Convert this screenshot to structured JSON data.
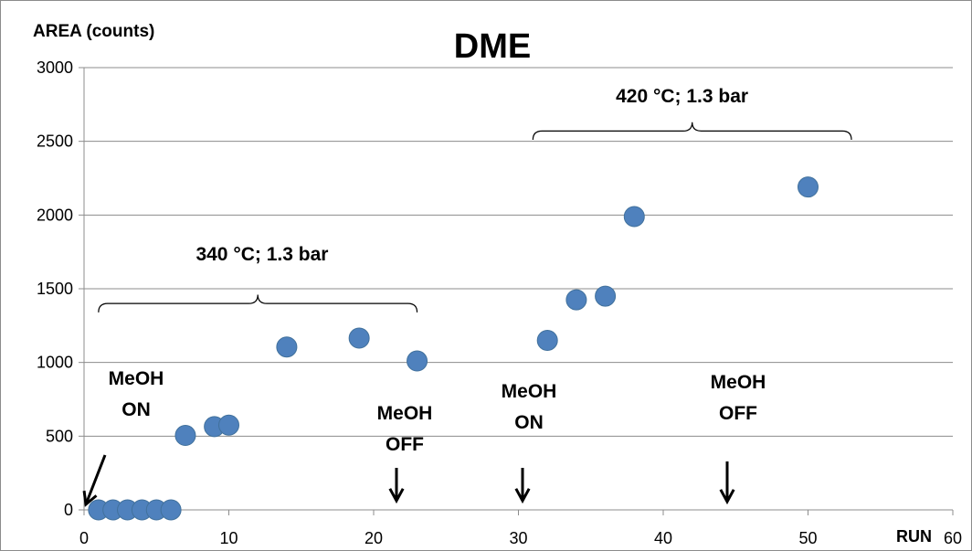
{
  "chart_data": {
    "type": "scatter",
    "title": "DME",
    "ylabel": "AREA (counts)",
    "xlabel": "RUN",
    "xlim": [
      0,
      60
    ],
    "ylim": [
      0,
      3000
    ],
    "x_ticks": [
      0,
      10,
      20,
      30,
      40,
      50,
      60
    ],
    "y_ticks": [
      0,
      500,
      1000,
      1500,
      2000,
      2500,
      3000
    ],
    "grid": "horizontal",
    "legend": "none",
    "marker_color": "#4f81bd",
    "series": [
      {
        "x": [
          1,
          2,
          3,
          4,
          5,
          6,
          7,
          9,
          10,
          14,
          19,
          23,
          32,
          34,
          36,
          38,
          50
        ],
        "y": [
          0,
          0,
          0,
          0,
          0,
          0,
          505,
          565,
          575,
          1105,
          1165,
          1010,
          1150,
          1425,
          1450,
          1990,
          2190
        ]
      }
    ],
    "annotations": [
      {
        "id": "meoh-on-1",
        "lines": [
          "MeOH",
          "ON"
        ]
      },
      {
        "id": "meoh-off-1",
        "lines": [
          "MeOH",
          "OFF"
        ]
      },
      {
        "id": "meoh-on-2",
        "lines": [
          "MeOH",
          "ON"
        ]
      },
      {
        "id": "meoh-off-2",
        "lines": [
          "MeOH",
          "OFF"
        ]
      }
    ],
    "brackets": [
      {
        "id": "bracket-340",
        "label": "340 °C; 1.3 bar",
        "x_range": [
          1,
          23
        ]
      },
      {
        "id": "bracket-420",
        "label": "420 °C; 1.3 bar",
        "x_range": [
          31,
          53
        ]
      }
    ]
  }
}
